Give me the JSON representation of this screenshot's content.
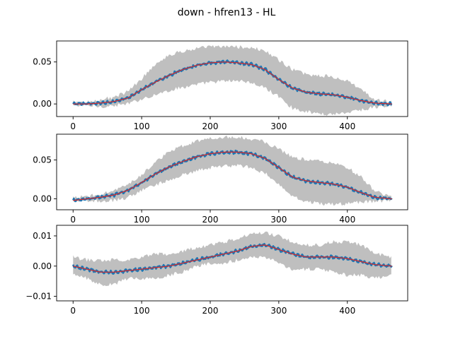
{
  "figure": {
    "title": "down - hfren13 - HL"
  },
  "chart_data": [
    {
      "type": "line",
      "title": "",
      "xlabel": "",
      "ylabel": "",
      "xlim": [
        -24,
        488
      ],
      "ylim": [
        -0.015,
        0.075
      ],
      "xticks": [
        0,
        100,
        200,
        300,
        400
      ],
      "xtick_labels": [
        "0",
        "100",
        "200",
        "300",
        "400"
      ],
      "yticks": [
        0.0,
        0.05
      ],
      "ytick_labels": [
        "0.00",
        "0.05"
      ],
      "n_points": 466,
      "series": [
        {
          "role": "band",
          "color": "#bfbfbf",
          "x": [
            0,
            20,
            40,
            60,
            80,
            100,
            120,
            140,
            160,
            180,
            200,
            220,
            240,
            260,
            280,
            300,
            320,
            340,
            360,
            380,
            400,
            420,
            440,
            465
          ],
          "lower": [
            -0.002,
            -0.002,
            -0.003,
            -0.002,
            0.0,
            0.006,
            0.011,
            0.016,
            0.02,
            0.023,
            0.026,
            0.027,
            0.028,
            0.025,
            0.019,
            0.009,
            -0.005,
            -0.009,
            -0.012,
            -0.012,
            -0.01,
            -0.007,
            -0.004,
            -0.002
          ],
          "upper": [
            0.002,
            0.002,
            0.005,
            0.008,
            0.015,
            0.03,
            0.048,
            0.058,
            0.063,
            0.066,
            0.068,
            0.068,
            0.068,
            0.067,
            0.063,
            0.052,
            0.041,
            0.035,
            0.034,
            0.032,
            0.027,
            0.017,
            0.005,
            0.002
          ]
        },
        {
          "role": "mean",
          "color": "#1f77b4",
          "x": [
            0,
            20,
            40,
            60,
            80,
            100,
            120,
            140,
            160,
            180,
            200,
            220,
            240,
            260,
            280,
            300,
            320,
            340,
            360,
            380,
            400,
            420,
            440,
            465
          ],
          "values": [
            0.0,
            0.0,
            0.001,
            0.003,
            0.007,
            0.017,
            0.026,
            0.034,
            0.041,
            0.046,
            0.049,
            0.05,
            0.049,
            0.047,
            0.041,
            0.029,
            0.019,
            0.014,
            0.012,
            0.011,
            0.008,
            0.004,
            0.001,
            0.0
          ]
        },
        {
          "role": "fit",
          "color": "#d62728",
          "x": [
            0,
            20,
            40,
            60,
            80,
            100,
            120,
            140,
            160,
            180,
            200,
            220,
            240,
            260,
            280,
            300,
            320,
            340,
            360,
            380,
            400,
            420,
            440,
            465
          ],
          "values": [
            0.0,
            0.0,
            0.001,
            0.003,
            0.007,
            0.017,
            0.026,
            0.034,
            0.041,
            0.046,
            0.049,
            0.05,
            0.049,
            0.047,
            0.041,
            0.029,
            0.019,
            0.014,
            0.012,
            0.011,
            0.008,
            0.004,
            0.001,
            0.0
          ]
        }
      ]
    },
    {
      "type": "line",
      "title": "",
      "xlabel": "",
      "ylabel": "",
      "xlim": [
        -24,
        488
      ],
      "ylim": [
        -0.014,
        0.083
      ],
      "xticks": [
        0,
        100,
        200,
        300,
        400
      ],
      "xtick_labels": [
        "0",
        "100",
        "200",
        "300",
        "400"
      ],
      "yticks": [
        0.0,
        0.05
      ],
      "ytick_labels": [
        "0.00",
        "0.05"
      ],
      "n_points": 466,
      "series": [
        {
          "role": "band",
          "color": "#bfbfbf",
          "x": [
            0,
            20,
            40,
            60,
            80,
            100,
            120,
            140,
            160,
            180,
            200,
            220,
            240,
            260,
            280,
            300,
            320,
            340,
            360,
            380,
            400,
            420,
            440,
            465
          ],
          "lower": [
            -0.003,
            -0.003,
            -0.003,
            -0.002,
            0.002,
            0.011,
            0.018,
            0.024,
            0.031,
            0.036,
            0.04,
            0.042,
            0.043,
            0.04,
            0.033,
            0.019,
            0.004,
            -0.004,
            -0.006,
            -0.007,
            -0.006,
            -0.004,
            -0.003,
            -0.002
          ],
          "upper": [
            0.001,
            0.003,
            0.006,
            0.011,
            0.018,
            0.03,
            0.048,
            0.06,
            0.068,
            0.074,
            0.078,
            0.079,
            0.079,
            0.077,
            0.073,
            0.064,
            0.054,
            0.05,
            0.048,
            0.046,
            0.04,
            0.028,
            0.01,
            0.002
          ]
        },
        {
          "role": "mean",
          "color": "#1f77b4",
          "x": [
            0,
            20,
            40,
            60,
            80,
            100,
            120,
            140,
            160,
            180,
            200,
            220,
            240,
            260,
            280,
            300,
            320,
            340,
            360,
            380,
            400,
            420,
            440,
            465
          ],
          "values": [
            -0.002,
            0.0,
            0.002,
            0.005,
            0.011,
            0.021,
            0.032,
            0.041,
            0.048,
            0.054,
            0.058,
            0.06,
            0.06,
            0.058,
            0.052,
            0.04,
            0.028,
            0.023,
            0.021,
            0.019,
            0.015,
            0.008,
            0.002,
            0.0
          ]
        },
        {
          "role": "fit",
          "color": "#d62728",
          "x": [
            0,
            20,
            40,
            60,
            80,
            100,
            120,
            140,
            160,
            180,
            200,
            220,
            240,
            260,
            280,
            300,
            320,
            340,
            360,
            380,
            400,
            420,
            440,
            465
          ],
          "values": [
            -0.002,
            0.0,
            0.002,
            0.005,
            0.011,
            0.021,
            0.032,
            0.041,
            0.048,
            0.054,
            0.058,
            0.06,
            0.06,
            0.058,
            0.052,
            0.04,
            0.028,
            0.023,
            0.021,
            0.019,
            0.015,
            0.008,
            0.002,
            0.0
          ]
        }
      ]
    },
    {
      "type": "line",
      "title": "",
      "xlabel": "",
      "ylabel": "",
      "xlim": [
        -24,
        488
      ],
      "ylim": [
        -0.0115,
        0.0135
      ],
      "xticks": [
        0,
        100,
        200,
        300,
        400
      ],
      "xtick_labels": [
        "0",
        "100",
        "200",
        "300",
        "400"
      ],
      "yticks": [
        -0.01,
        0.0,
        0.01
      ],
      "ytick_labels": [
        "−0.01",
        "0.00",
        "0.01"
      ],
      "n_points": 466,
      "series": [
        {
          "role": "band",
          "color": "#bfbfbf",
          "x": [
            0,
            20,
            40,
            60,
            80,
            100,
            120,
            140,
            160,
            180,
            200,
            220,
            240,
            260,
            280,
            300,
            320,
            340,
            360,
            380,
            400,
            420,
            440,
            465
          ],
          "lower": [
            -0.003,
            -0.004,
            -0.006,
            -0.006,
            -0.004,
            -0.004,
            -0.004,
            -0.003,
            -0.002,
            0.0,
            0.001,
            0.001,
            0.002,
            0.003,
            0.003,
            0.001,
            -0.001,
            -0.001,
            -0.001,
            -0.002,
            -0.003,
            -0.003,
            -0.004,
            -0.003
          ],
          "upper": [
            0.003,
            0.002,
            0.002,
            0.002,
            0.002,
            0.003,
            0.004,
            0.004,
            0.005,
            0.006,
            0.007,
            0.008,
            0.009,
            0.011,
            0.011,
            0.01,
            0.008,
            0.007,
            0.007,
            0.008,
            0.008,
            0.007,
            0.004,
            0.003
          ]
        },
        {
          "role": "mean",
          "color": "#1f77b4",
          "x": [
            0,
            20,
            40,
            60,
            80,
            100,
            120,
            140,
            160,
            180,
            200,
            220,
            240,
            260,
            280,
            300,
            320,
            340,
            360,
            380,
            400,
            420,
            440,
            465
          ],
          "values": [
            0.0,
            -0.001,
            -0.002,
            -0.002,
            -0.0015,
            -0.001,
            -0.0005,
            0.0,
            0.001,
            0.002,
            0.003,
            0.004,
            0.005,
            0.0065,
            0.007,
            0.0055,
            0.004,
            0.003,
            0.003,
            0.003,
            0.0025,
            0.0015,
            0.0005,
            0.0
          ]
        },
        {
          "role": "fit",
          "color": "#d62728",
          "x": [
            0,
            20,
            40,
            60,
            80,
            100,
            120,
            140,
            160,
            180,
            200,
            220,
            240,
            260,
            280,
            300,
            320,
            340,
            360,
            380,
            400,
            420,
            440,
            465
          ],
          "values": [
            0.0,
            -0.001,
            -0.002,
            -0.002,
            -0.0015,
            -0.001,
            -0.0005,
            0.0,
            0.001,
            0.002,
            0.003,
            0.004,
            0.005,
            0.0065,
            0.007,
            0.0055,
            0.004,
            0.003,
            0.003,
            0.003,
            0.0025,
            0.0015,
            0.0005,
            0.0
          ]
        }
      ]
    }
  ]
}
